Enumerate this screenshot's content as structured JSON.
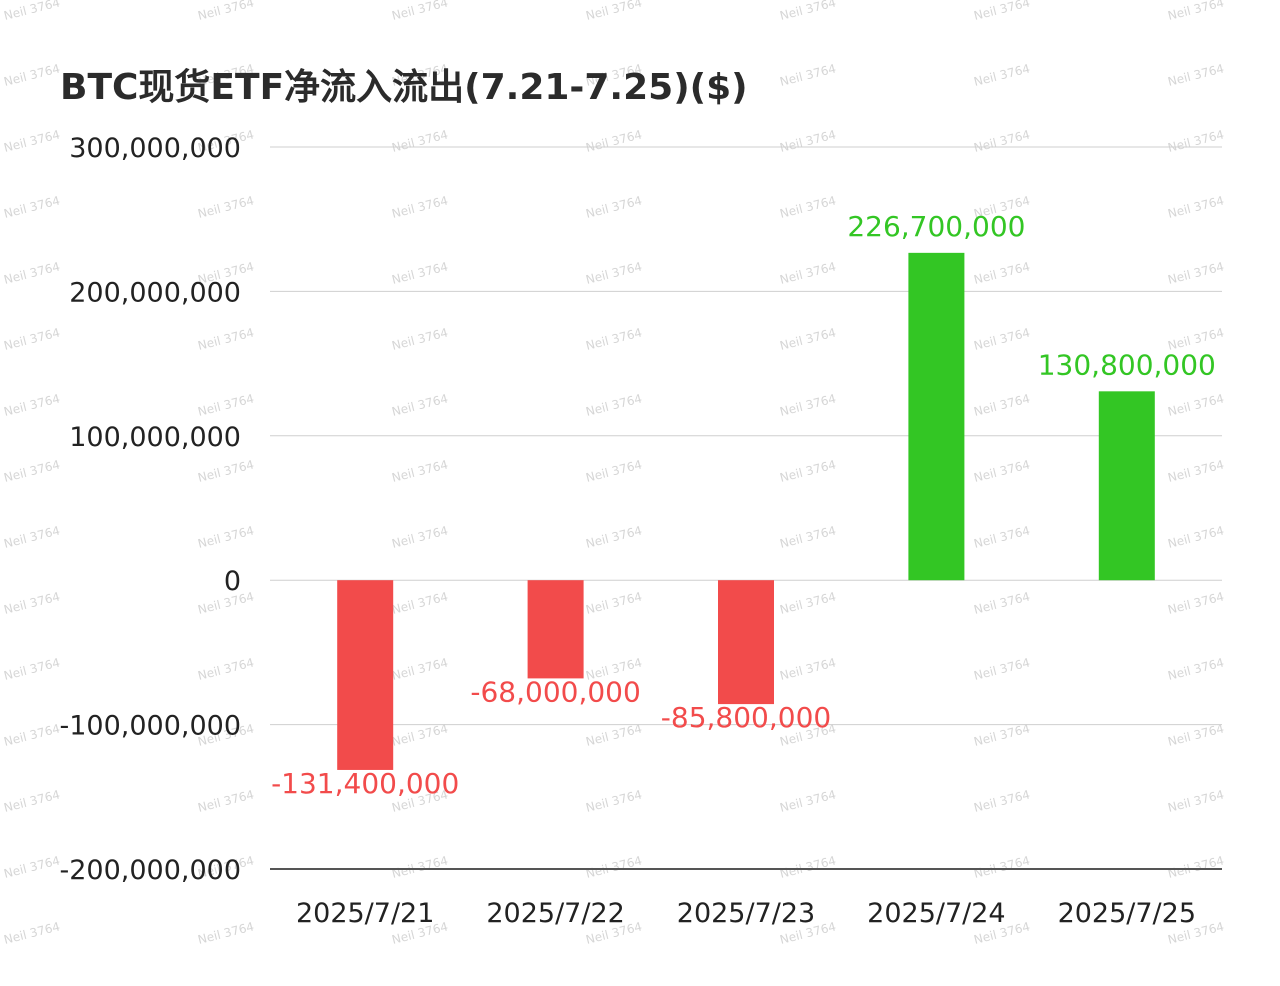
{
  "chart_data": {
    "type": "bar",
    "title": "BTC现货ETF净流入流出(7.21-7.25)($)",
    "categories": [
      "2025/7/21",
      "2025/7/22",
      "2025/7/23",
      "2025/7/24",
      "2025/7/25"
    ],
    "values": [
      -131400000,
      -68000000,
      -85800000,
      226700000,
      130800000
    ],
    "value_labels": [
      "-131,400,000",
      "-68,000,000",
      "-85,800,000",
      "226,700,000",
      "130,800,000"
    ],
    "ylim": [
      -200000000,
      300000000
    ],
    "yticks": [
      300000000,
      200000000,
      100000000,
      0,
      -100000000,
      -200000000
    ],
    "ytick_labels": [
      "300,000,000",
      "200,000,000",
      "100,000,000",
      "0",
      "-100,000,000",
      "-200,000,000"
    ],
    "grid": true,
    "legend": "none",
    "colors": {
      "positive": "#33c624",
      "negative": "#f24b4b",
      "grid": "#cfcfcf",
      "axis": "#555555"
    }
  },
  "watermark": "Neil 3764"
}
